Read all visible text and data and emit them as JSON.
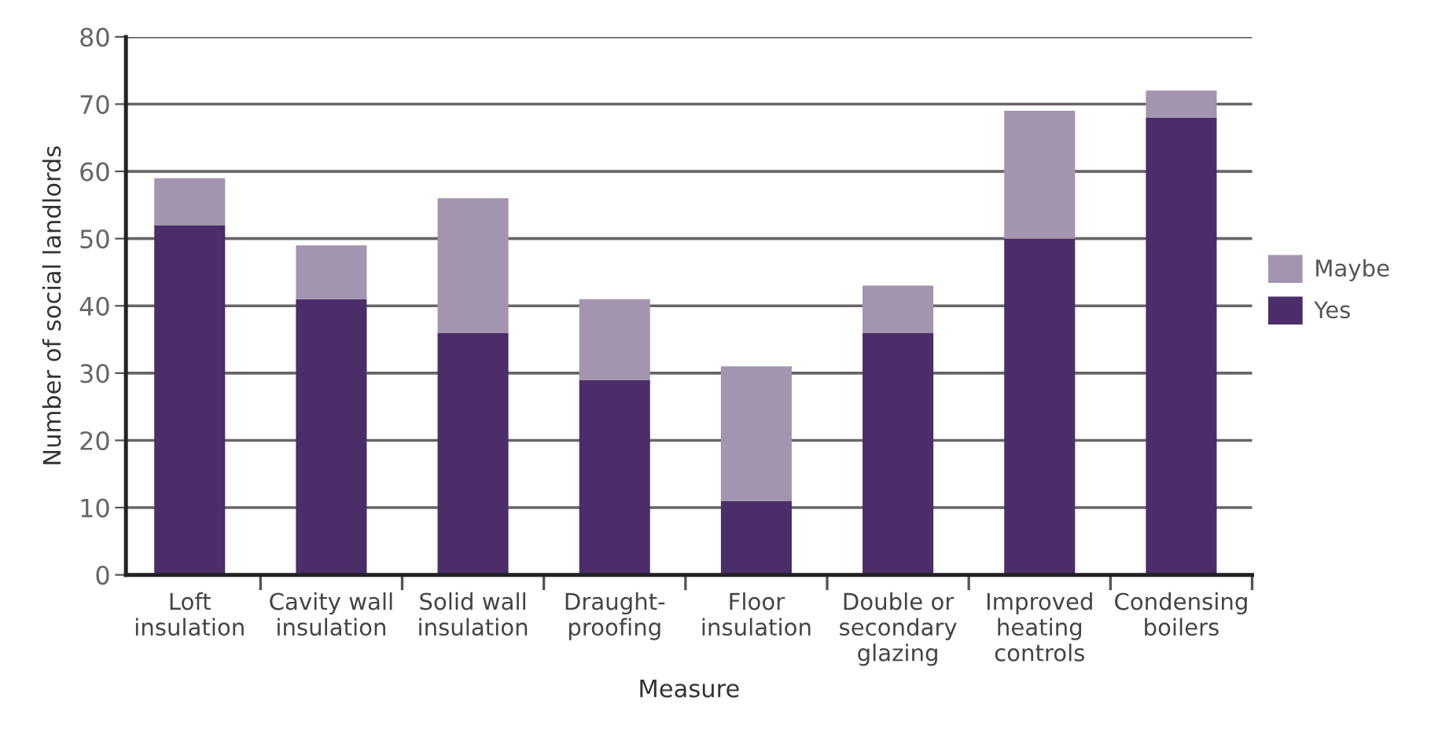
{
  "chart_data": {
    "type": "bar",
    "stacked": true,
    "xlabel": "Measure",
    "ylabel": "Number of social landlords",
    "categories": [
      "Loft\ninsulation",
      "Cavity wall\ninsulation",
      "Solid wall\ninsulation",
      "Draught-\nproofing",
      "Floor\ninsulation",
      "Double or\nsecondary\nglazing",
      "Improved\nheating\ncontrols",
      "Condensing\nboilers"
    ],
    "series": [
      {
        "name": "Yes",
        "color": "#4a2d69",
        "values": [
          52,
          41,
          36,
          29,
          11,
          36,
          50,
          68
        ]
      },
      {
        "name": "Maybe",
        "color": "#a394b0",
        "values": [
          7,
          8,
          20,
          12,
          20,
          7,
          19,
          4
        ]
      }
    ],
    "ylim": [
      0,
      80
    ],
    "yticks": [
      0,
      10,
      20,
      30,
      40,
      50,
      60,
      70,
      80
    ],
    "grid": "y",
    "legend": "right"
  }
}
